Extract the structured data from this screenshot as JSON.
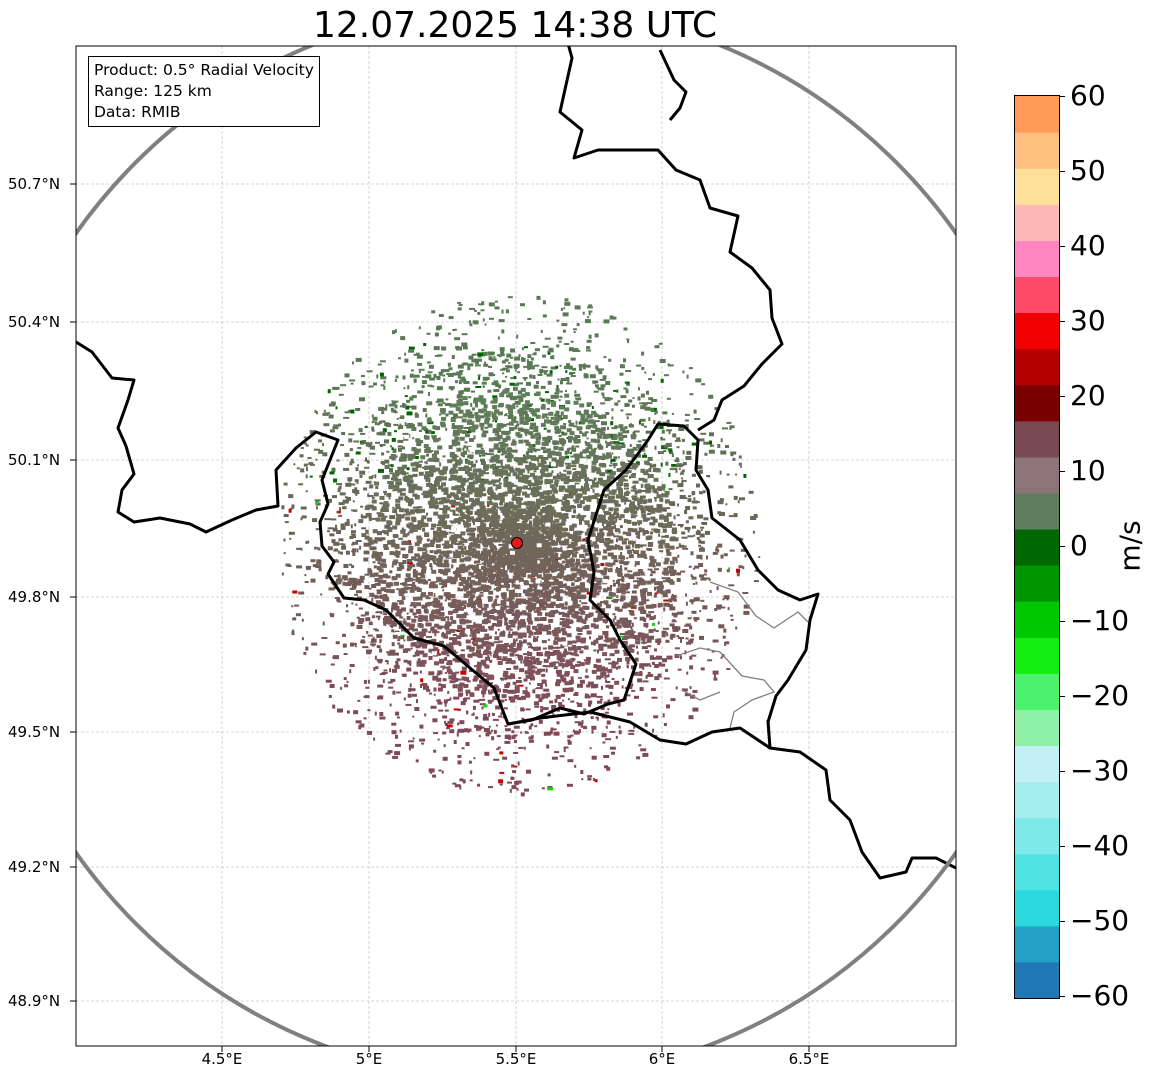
{
  "title": "12.07.2025 14:38 UTC",
  "info": {
    "product": "Product: 0.5° Radial Velocity",
    "range": "Range: 125 km",
    "data": "Data: RMIB"
  },
  "lat_ticks": [
    "50.7°N",
    "50.4°N",
    "50.1°N",
    "49.8°N",
    "49.5°N",
    "49.2°N",
    "48.9°N"
  ],
  "lon_ticks": [
    "4.5°E",
    "5°E",
    "5.5°E",
    "6°E",
    "6.5°E"
  ],
  "colorbar": {
    "unit": "m/s",
    "min": -60,
    "max": 60,
    "tick_labels": [
      "60",
      "50",
      "40",
      "30",
      "20",
      "10",
      "0",
      "−10",
      "−20",
      "−30",
      "−40",
      "−50",
      "−60"
    ],
    "colors": [
      "#1f77b4",
      "#25a0c8",
      "#2bd9dd",
      "#4fe3e3",
      "#7ee9e9",
      "#a5eeee",
      "#c2f0f4",
      "#8ff0a8",
      "#4cf26c",
      "#12ee12",
      "#00c800",
      "#009600",
      "#006800",
      "#5e7e5e",
      "#8c7478",
      "#7a4a52",
      "#7a0000",
      "#b40000",
      "#f00000",
      "#ff4a6a",
      "#ff86c0",
      "#ffb8b8",
      "#ffe09a",
      "#ffc080",
      "#ff9a58"
    ]
  },
  "radar": {
    "site_lon": 5.5,
    "site_lat": 49.915,
    "range_km": 125,
    "site_color": "#e41a1c",
    "velocity_pattern": "receding (green) to north, approaching-coded (brown/maroon) to south"
  },
  "accent_colors": {
    "range_ring": "#808080",
    "border": "#000000",
    "grid": "#c8c8c8"
  }
}
